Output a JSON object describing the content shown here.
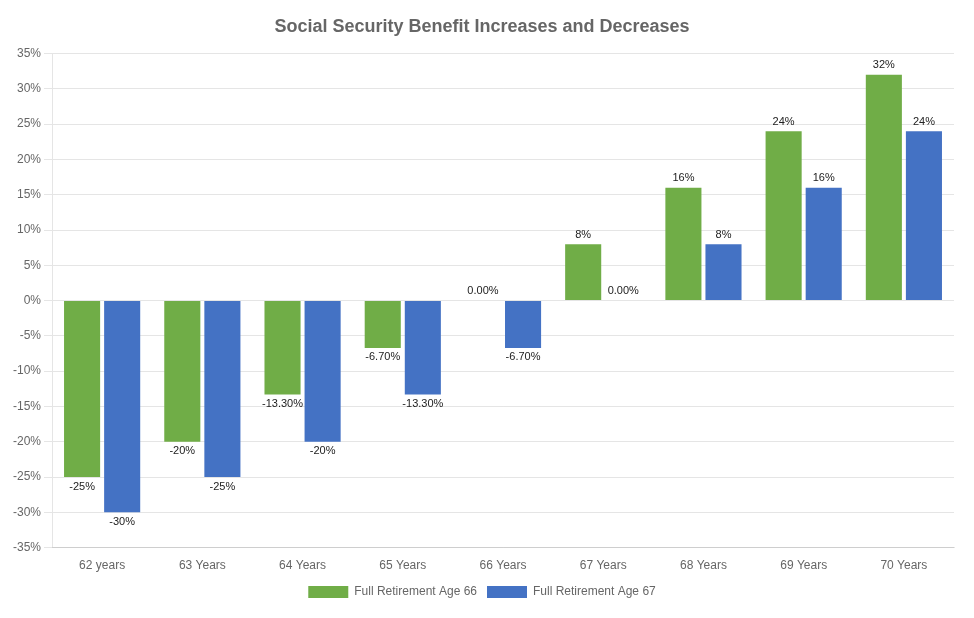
{
  "chart_data": {
    "type": "bar",
    "title": "Social Security Benefit Increases and Decreases",
    "categories": [
      "62 years",
      "63 Years",
      "64 Years",
      "65 Years",
      "66 Years",
      "67 Years",
      "68 Years",
      "69 Years",
      "70 Years"
    ],
    "series": [
      {
        "name": "Full Retirement Age 66",
        "color": "#70AD47",
        "values": [
          -25,
          -20,
          -13.3,
          -6.7,
          0.0,
          8,
          16,
          24,
          32
        ],
        "value_labels": [
          "-25%",
          "-20%",
          "-13.30%",
          "-6.70%",
          "0.00%",
          "8%",
          "16%",
          "24%",
          "32%"
        ]
      },
      {
        "name": "Full Retirement Age 67",
        "color": "#4472C4",
        "values": [
          -30,
          -25,
          -20,
          -13.3,
          -6.7,
          0.0,
          8,
          16,
          24
        ],
        "value_labels": [
          "-30%",
          "-25%",
          "-20%",
          "-13.30%",
          "-6.70%",
          "0.00%",
          "8%",
          "16%",
          "24%"
        ]
      }
    ],
    "ylim": [
      -35,
      35
    ],
    "yticks": [
      {
        "value": -35,
        "label": "-35%"
      },
      {
        "value": -30,
        "label": "-30%"
      },
      {
        "value": -25,
        "label": "-25%"
      },
      {
        "value": -20,
        "label": "-20%"
      },
      {
        "value": -15,
        "label": "-15%"
      },
      {
        "value": -10,
        "label": "-10%"
      },
      {
        "value": -5,
        "label": "-5%"
      },
      {
        "value": 0,
        "label": "0%"
      },
      {
        "value": 5,
        "label": "5%"
      },
      {
        "value": 10,
        "label": "10%"
      },
      {
        "value": 15,
        "label": "15%"
      },
      {
        "value": 20,
        "label": "20%"
      },
      {
        "value": 25,
        "label": "25%"
      },
      {
        "value": 30,
        "label": "30%"
      },
      {
        "value": 35,
        "label": "35%"
      }
    ],
    "grid": true,
    "legend": "bottom",
    "data_labels": true
  }
}
